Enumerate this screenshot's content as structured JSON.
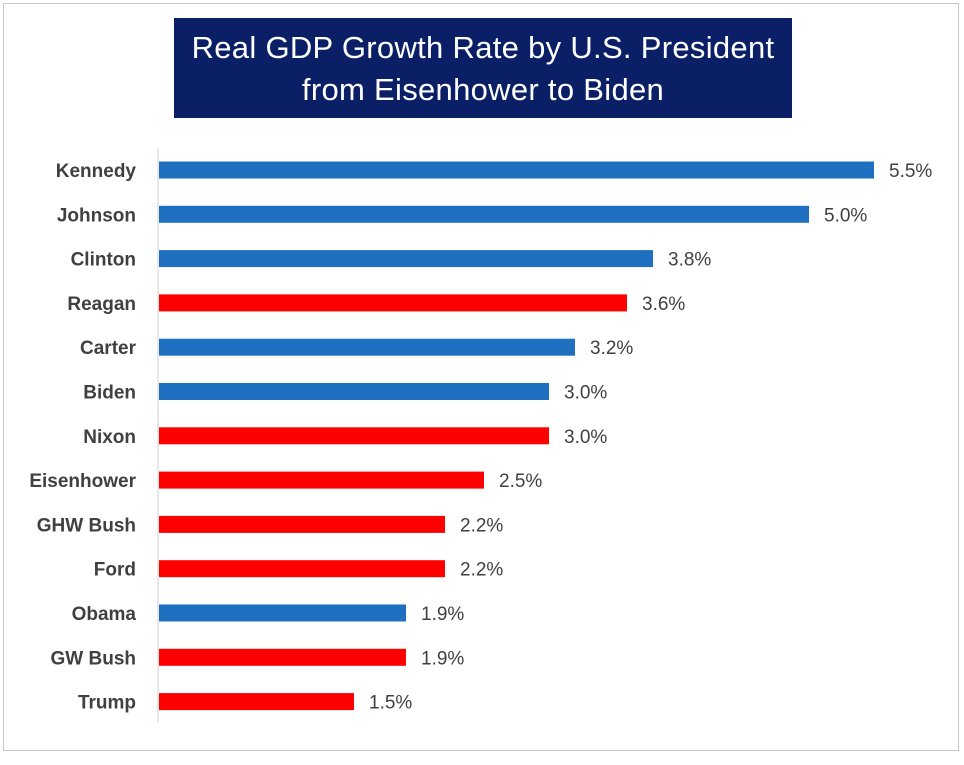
{
  "title": {
    "line1": "Real GDP Growth Rate by U.S. President",
    "line2": "from Eisenhower to Biden"
  },
  "colors": {
    "democrat": "#1e6fc0",
    "republican": "#ff0000",
    "title_bg": "#0b1f66",
    "title_text": "#ffffff",
    "label_text": "#404040",
    "axis": "#d0d0d0"
  },
  "chart_data": {
    "type": "bar",
    "orientation": "horizontal",
    "title": "Real GDP Growth Rate by U.S. President from Eisenhower to Biden",
    "xlabel": "",
    "ylabel": "",
    "xlim": [
      0,
      5.5
    ],
    "grid": false,
    "legend": "none",
    "categories": [
      "Kennedy",
      "Johnson",
      "Clinton",
      "Reagan",
      "Carter",
      "Biden",
      "Nixon",
      "Eisenhower",
      "GHW Bush",
      "Ford",
      "Obama",
      "GW Bush",
      "Trump"
    ],
    "values": [
      5.5,
      5.0,
      3.8,
      3.6,
      3.2,
      3.0,
      3.0,
      2.5,
      2.2,
      2.2,
      1.9,
      1.9,
      1.5
    ],
    "value_labels": [
      "5.5%",
      "5.0%",
      "3.8%",
      "3.6%",
      "3.2%",
      "3.0%",
      "3.0%",
      "2.5%",
      "2.2%",
      "2.2%",
      "1.9%",
      "1.9%",
      "1.5%"
    ],
    "bar_colors": [
      "#1e6fc0",
      "#1e6fc0",
      "#1e6fc0",
      "#ff0000",
      "#1e6fc0",
      "#1e6fc0",
      "#ff0000",
      "#ff0000",
      "#ff0000",
      "#ff0000",
      "#1e6fc0",
      "#ff0000",
      "#ff0000"
    ]
  }
}
